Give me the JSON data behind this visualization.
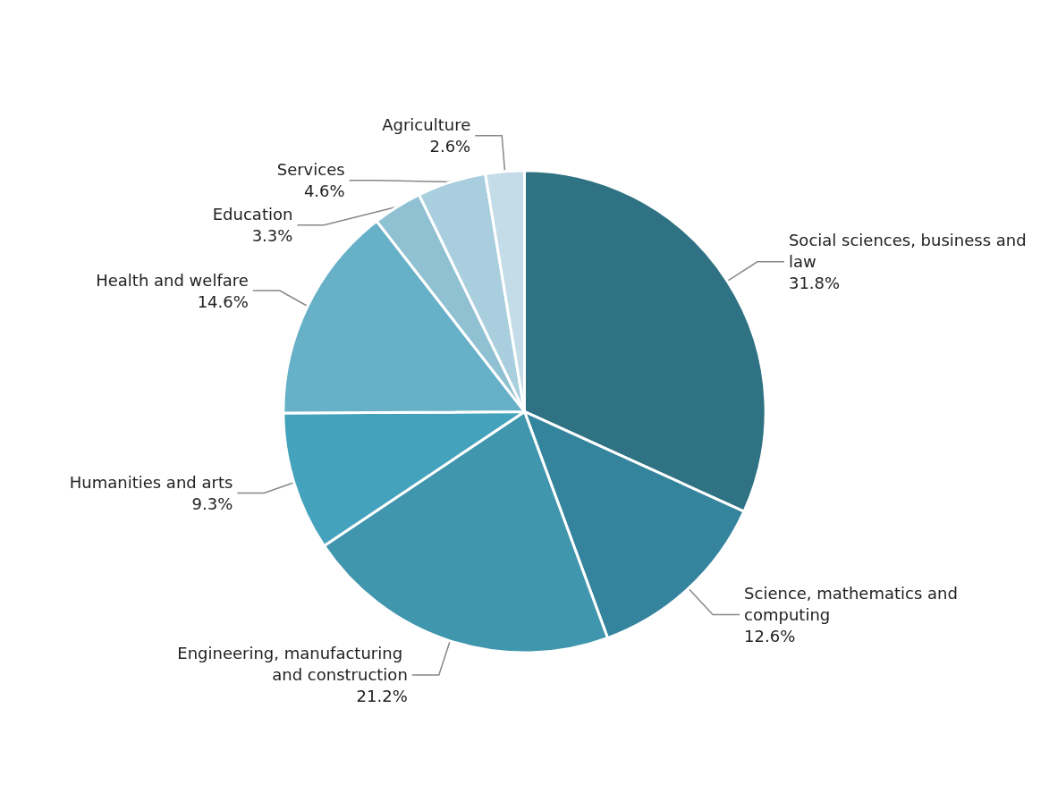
{
  "chart_data": {
    "type": "pie",
    "categories": [
      "Social sciences, business and law",
      "Science, mathematics and computing",
      "Engineering, manufacturing and construction",
      "Humanities and arts",
      "Health and welfare",
      "Education",
      "Services",
      "Agriculture"
    ],
    "values": [
      31.8,
      12.6,
      21.2,
      9.3,
      14.6,
      3.3,
      4.6,
      2.6
    ],
    "value_labels": [
      "31.8%",
      "12.6%",
      "21.2%",
      "9.3%",
      "14.6%",
      "3.3%",
      "4.6%",
      "2.6%"
    ],
    "colors": [
      "#2e7283",
      "#35849d",
      "#4096ad",
      "#45a2bd",
      "#66b0c8",
      "#8fc1d3",
      "#a9cfdf",
      "#c4dce7"
    ],
    "legend": false
  }
}
